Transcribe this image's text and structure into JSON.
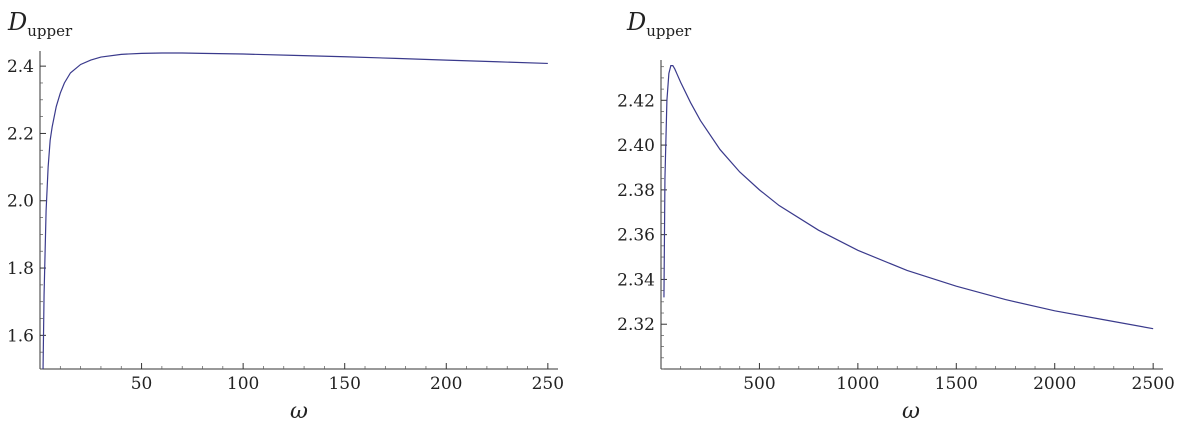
{
  "chart_data": [
    {
      "type": "line",
      "ylabel": "D",
      "ylabel_subscript": "upper",
      "xlabel": "ω",
      "xlim": [
        0,
        255
      ],
      "ylim": [
        1.5,
        2.445
      ],
      "x_ticks": [
        50,
        100,
        150,
        200,
        250
      ],
      "x_tick_labels": [
        "50",
        "100",
        "150",
        "200",
        "250"
      ],
      "y_ticks": [
        1.6,
        1.8,
        2.0,
        2.2,
        2.4
      ],
      "y_tick_labels": [
        "1.6",
        "1.8",
        "2.0",
        "2.2",
        "2.4"
      ],
      "grid": false,
      "color": "#3a3a8c",
      "series": [
        {
          "x": [
            1.5,
            2,
            3,
            4,
            5,
            6,
            8,
            10,
            12,
            15,
            20,
            25,
            30,
            40,
            50,
            60,
            70,
            80,
            100,
            125,
            150,
            175,
            200,
            225,
            250
          ],
          "y": [
            1.5,
            1.72,
            1.97,
            2.1,
            2.18,
            2.22,
            2.28,
            2.32,
            2.35,
            2.38,
            2.405,
            2.418,
            2.427,
            2.435,
            2.438,
            2.439,
            2.439,
            2.438,
            2.436,
            2.432,
            2.428,
            2.423,
            2.418,
            2.413,
            2.408
          ]
        }
      ]
    },
    {
      "type": "line",
      "ylabel": "D",
      "ylabel_subscript": "upper",
      "xlabel": "ω",
      "xlim": [
        0,
        2550
      ],
      "ylim": [
        2.3,
        2.438
      ],
      "x_ticks": [
        500,
        1000,
        1500,
        2000,
        2500
      ],
      "x_tick_labels": [
        "500",
        "1000",
        "1500",
        "2000",
        "2500"
      ],
      "y_ticks": [
        2.32,
        2.34,
        2.36,
        2.38,
        2.4,
        2.42
      ],
      "y_tick_labels": [
        "2.32",
        "2.34",
        "2.36",
        "2.38",
        "2.40",
        "2.42"
      ],
      "grid": false,
      "color": "#3a3a8c",
      "series": [
        {
          "x": [
            15,
            20,
            30,
            40,
            50,
            60,
            70,
            80,
            100,
            150,
            200,
            300,
            400,
            500,
            600,
            800,
            1000,
            1250,
            1500,
            1750,
            2000,
            2250,
            2500
          ],
          "y": [
            2.332,
            2.385,
            2.42,
            2.432,
            2.4355,
            2.4355,
            2.434,
            2.432,
            2.428,
            2.419,
            2.411,
            2.398,
            2.388,
            2.38,
            2.373,
            2.362,
            2.353,
            2.344,
            2.337,
            2.331,
            2.326,
            2.322,
            2.318
          ]
        }
      ]
    }
  ]
}
